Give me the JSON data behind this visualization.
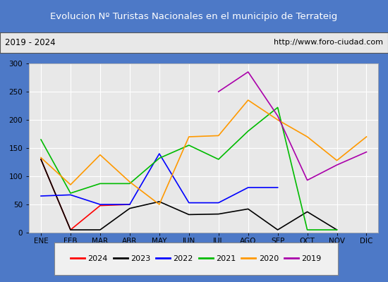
{
  "title": "Evolucion Nº Turistas Nacionales en el municipio de Terrateig",
  "subtitle_left": "2019 - 2024",
  "subtitle_right": "http://www.foro-ciudad.com",
  "months": [
    "ENE",
    "FEB",
    "MAR",
    "ABR",
    "MAY",
    "JUN",
    "JUL",
    "AGO",
    "SEP",
    "OCT",
    "NOV",
    "DIC"
  ],
  "ylim": [
    0,
    300
  ],
  "yticks": [
    0,
    50,
    100,
    150,
    200,
    250,
    300
  ],
  "series": {
    "2024": {
      "color": "#ff0000",
      "values": [
        130,
        5,
        48,
        50,
        null,
        null,
        null,
        null,
        null,
        null,
        null,
        null
      ]
    },
    "2023": {
      "color": "#000000",
      "values": [
        130,
        5,
        5,
        43,
        55,
        32,
        33,
        42,
        5,
        37,
        5,
        null
      ]
    },
    "2022": {
      "color": "#0000ff",
      "values": [
        65,
        67,
        50,
        50,
        140,
        53,
        53,
        80,
        80,
        null,
        null,
        null
      ]
    },
    "2021": {
      "color": "#00bb00",
      "values": [
        165,
        70,
        87,
        87,
        132,
        155,
        130,
        180,
        222,
        5,
        5,
        null
      ]
    },
    "2020": {
      "color": "#ff9900",
      "values": [
        133,
        85,
        138,
        90,
        50,
        170,
        172,
        235,
        200,
        170,
        128,
        170
      ]
    },
    "2019": {
      "color": "#aa00aa",
      "values": [
        null,
        null,
        null,
        null,
        null,
        null,
        250,
        285,
        207,
        93,
        120,
        143
      ]
    }
  },
  "legend_order": [
    "2024",
    "2023",
    "2022",
    "2021",
    "2020",
    "2019"
  ],
  "title_bg_color": "#4d79c7",
  "title_color": "#ffffff",
  "subtitle_bg_color": "#e8e8e8",
  "plot_bg_color": "#e8e8e8",
  "legend_bg_color": "#f0f0f0",
  "border_color": "#4d79c7",
  "grid_color": "#ffffff"
}
